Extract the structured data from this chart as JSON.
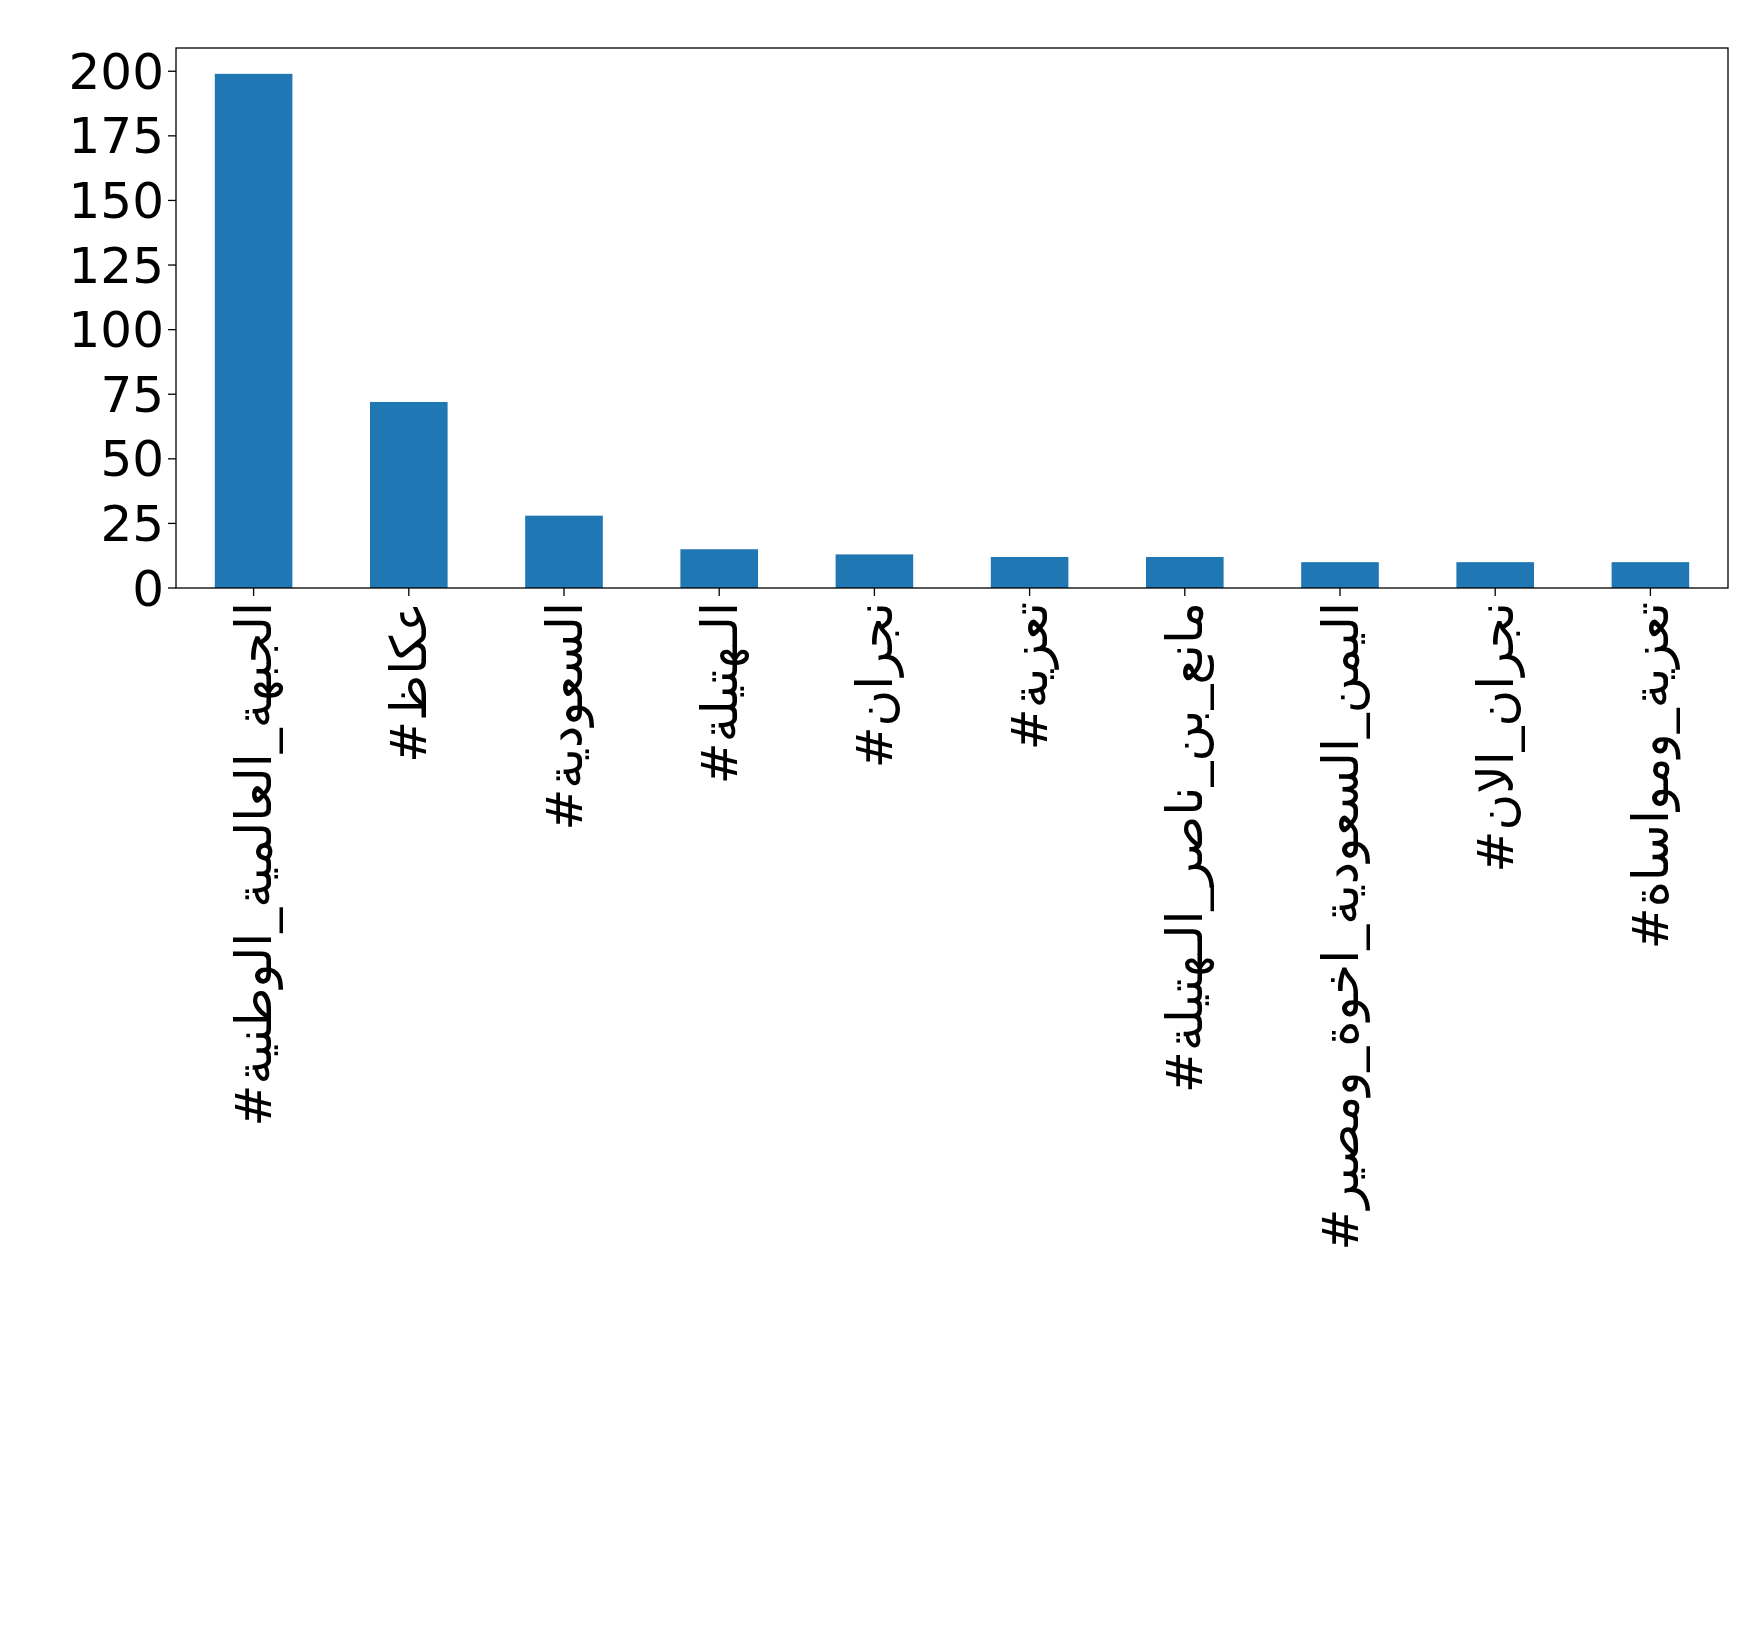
{
  "chart_data": {
    "type": "bar",
    "categories": [
      "#الجبهة_العالمية_الوطنية",
      "#عكاظ",
      "#السعودية",
      "#الـهتيلة",
      "#نجران",
      "#تعزية",
      "#مانع_بن_ناصر_الـهتيلة",
      "#اليمن_السعودية_اخوة_ومصير",
      "#نجران_الان",
      "#تعزية_ومواساة"
    ],
    "values": [
      199,
      72,
      28,
      15,
      13,
      12,
      12,
      10,
      10,
      10
    ],
    "color": "#1f77b4",
    "ylim": [
      0,
      209
    ],
    "yticks": [
      0,
      25,
      50,
      75,
      100,
      125,
      150,
      175,
      200
    ],
    "grid": false
  }
}
